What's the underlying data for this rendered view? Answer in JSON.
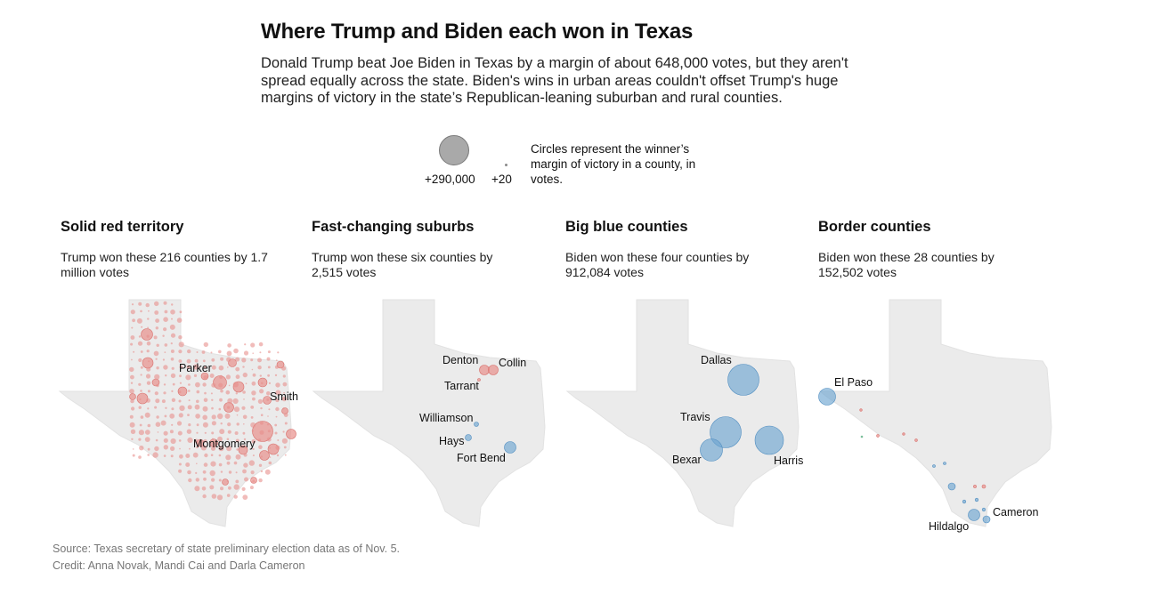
{
  "header": {
    "title": "Where Trump and Biden each won in Texas",
    "dek": "Donald Trump beat Joe Biden in Texas by a margin of about 648,000 votes, but they aren't spread equally across the state. Biden's wins in urban areas couldn't offset Trump's huge margins of victory in the state’s Republican-leaning suburban and rural counties."
  },
  "legend": {
    "max_label": "+290,000",
    "min_label": "+20",
    "note": "Circles represent the winner’s margin of victory in a county, in votes."
  },
  "colors": {
    "trump": "#e8908c",
    "biden": "#6fa6d1",
    "state_fill": "#ebebeb"
  },
  "panels": [
    {
      "title": "Solid red territory",
      "subtitle": "Trump won these 216 counties by 1.7 million votes",
      "labels": [
        "Parker",
        "Smith",
        "Montgomery"
      ]
    },
    {
      "title": "Fast-changing suburbs",
      "subtitle": "Trump won these six counties by 2,515 votes",
      "labels": [
        "Denton",
        "Collin",
        "Tarrant",
        "Williamson",
        "Hays",
        "Fort Bend"
      ]
    },
    {
      "title": "Big blue counties",
      "subtitle": "Biden won these four counties by 912,084 votes",
      "labels": [
        "Dallas",
        "Travis",
        "Bexar",
        "Harris"
      ]
    },
    {
      "title": "Border counties",
      "subtitle": "Biden won these 28 counties by 152,502 votes",
      "labels": [
        "El Paso",
        "Cameron",
        "Hildalgo"
      ]
    }
  ],
  "footer": {
    "source": "Source: Texas secretary of state preliminary election data as of Nov. 5.",
    "credit": "Credit: Anna Novak, Mandi Cai and Darla Cameron"
  }
}
